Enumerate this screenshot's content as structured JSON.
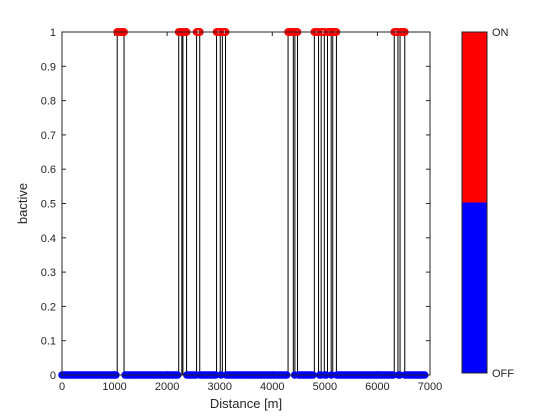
{
  "chart_data": {
    "type": "line",
    "xlabel": "Distance [m]",
    "ylabel": "bactive",
    "xlim": [
      0,
      7000
    ],
    "ylim": [
      0,
      1
    ],
    "xticks": [
      0,
      1000,
      2000,
      3000,
      4000,
      5000,
      6000,
      7000
    ],
    "yticks": [
      0,
      0.1,
      0.2,
      0.3,
      0.4,
      0.5,
      0.6,
      0.7,
      0.8,
      0.9,
      1
    ],
    "grid": false,
    "series": [
      {
        "style": "black step line with markers colored by state",
        "on_intervals": [
          [
            1050,
            1180
          ],
          [
            2220,
            2280
          ],
          [
            2300,
            2370
          ],
          [
            2560,
            2620
          ],
          [
            2940,
            3010
          ],
          [
            3050,
            3110
          ],
          [
            4300,
            4400
          ],
          [
            4430,
            4480
          ],
          [
            4800,
            4880
          ],
          [
            4930,
            4990
          ],
          [
            5050,
            5120
          ],
          [
            5150,
            5220
          ],
          [
            6320,
            6390
          ],
          [
            6430,
            6520
          ]
        ],
        "x_range": [
          0,
          6900
        ]
      }
    ],
    "colorbar": {
      "labels": [
        "ON",
        "OFF"
      ],
      "colors": [
        "#ff0000",
        "#0000ff"
      ]
    }
  }
}
